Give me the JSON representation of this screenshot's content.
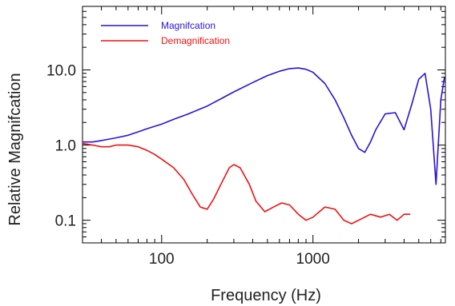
{
  "chart_data": {
    "type": "line",
    "xlabel": "Frequency (Hz)",
    "ylabel": "Relative Magnifcation",
    "x_scale": "log",
    "y_scale": "log",
    "xlim": [
      30,
      7500
    ],
    "ylim": [
      0.05,
      70
    ],
    "x_ticks": [
      {
        "value": 100,
        "label": "100"
      },
      {
        "value": 1000,
        "label": "1000"
      }
    ],
    "y_ticks": [
      {
        "value": 0.1,
        "label": "0.1"
      },
      {
        "value": 1,
        "label": "1.0"
      },
      {
        "value": 10,
        "label": "10.0"
      }
    ],
    "grid": false,
    "legend_position": "top-left",
    "series": [
      {
        "name": "Magnifcation",
        "color": "#2b12d6",
        "x": [
          30,
          35,
          40,
          45,
          50,
          60,
          70,
          80,
          100,
          120,
          150,
          200,
          250,
          300,
          400,
          500,
          600,
          700,
          800,
          900,
          1000,
          1200,
          1400,
          1600,
          1800,
          2000,
          2200,
          2400,
          2600,
          3000,
          3500,
          4000,
          4500,
          5000,
          5500,
          6000,
          6500,
          7000,
          7400
        ],
        "y": [
          1.1,
          1.1,
          1.15,
          1.2,
          1.25,
          1.35,
          1.5,
          1.65,
          1.9,
          2.2,
          2.6,
          3.3,
          4.2,
          5.1,
          6.8,
          8.4,
          9.6,
          10.4,
          10.6,
          10.2,
          9.3,
          6.6,
          4.0,
          2.3,
          1.35,
          0.9,
          0.8,
          1.1,
          1.6,
          2.6,
          2.7,
          1.6,
          3.5,
          7.5,
          9.0,
          3.0,
          0.3,
          4.0,
          8.0
        ]
      },
      {
        "name": "Demagnification",
        "color": "#f01010",
        "x": [
          30,
          35,
          40,
          45,
          50,
          60,
          70,
          80,
          90,
          100,
          120,
          140,
          160,
          180,
          200,
          220,
          250,
          280,
          300,
          330,
          380,
          420,
          480,
          550,
          620,
          700,
          800,
          900,
          1000,
          1200,
          1400,
          1600,
          1800,
          2000,
          2400,
          2800,
          3200,
          3600,
          4000,
          4400
        ],
        "y": [
          1.05,
          1.0,
          0.95,
          0.95,
          1.0,
          1.0,
          0.95,
          0.85,
          0.75,
          0.65,
          0.5,
          0.35,
          0.22,
          0.15,
          0.14,
          0.19,
          0.32,
          0.5,
          0.55,
          0.5,
          0.3,
          0.18,
          0.13,
          0.15,
          0.17,
          0.16,
          0.12,
          0.1,
          0.11,
          0.15,
          0.14,
          0.1,
          0.09,
          0.1,
          0.12,
          0.11,
          0.12,
          0.1,
          0.12,
          0.12
        ]
      }
    ]
  }
}
